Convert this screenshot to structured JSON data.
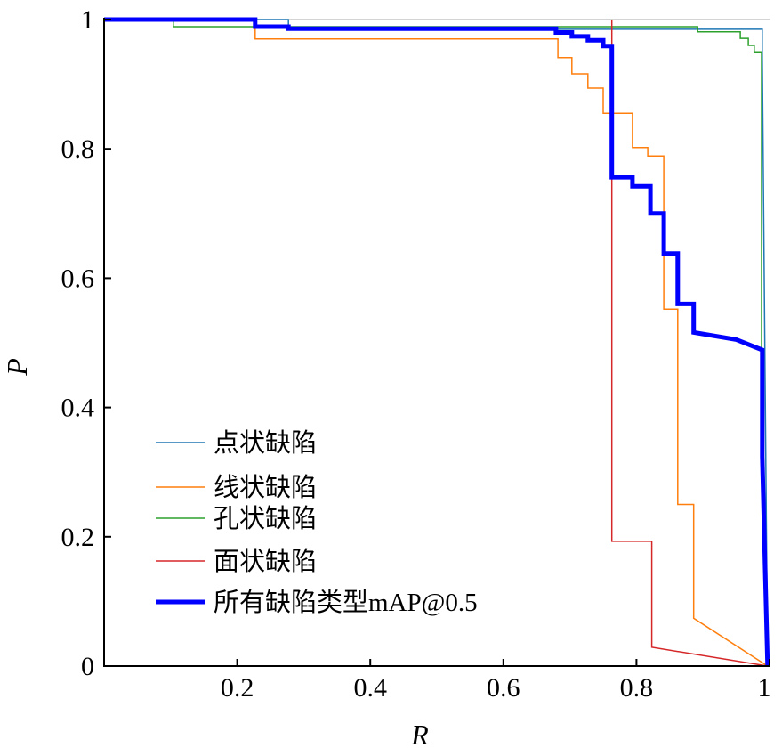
{
  "chart_data": {
    "type": "line",
    "title": "",
    "xlabel": "R",
    "ylabel": "P",
    "xlim": [
      0,
      1
    ],
    "ylim": [
      0,
      1
    ],
    "grid": false,
    "legend_position": "bottom-left",
    "xticks": [
      0.2,
      0.4,
      0.6,
      0.8,
      1
    ],
    "xtick_labels": [
      "0.2",
      "0.4",
      "0.6",
      "0.8",
      "1"
    ],
    "yticks": [
      0,
      0.2,
      0.4,
      0.6,
      0.8,
      1
    ],
    "ytick_labels": [
      "0",
      "0.2",
      "0.4",
      "0.6",
      "0.8",
      "1"
    ],
    "series": [
      {
        "name": "点状缺陷",
        "color": "#1f77b4",
        "width": 1.5,
        "points": [
          [
            0,
            1
          ],
          [
            0.277,
            1
          ],
          [
            0.277,
            0.985
          ],
          [
            0.989,
            0.985
          ],
          [
            0.989,
            0.95
          ],
          [
            0.997,
            0
          ]
        ]
      },
      {
        "name": "线状缺陷",
        "color": "#ff7f0e",
        "width": 1.5,
        "points": [
          [
            0,
            1
          ],
          [
            0.227,
            1
          ],
          [
            0.227,
            0.97
          ],
          [
            0.682,
            0.97
          ],
          [
            0.682,
            0.941
          ],
          [
            0.703,
            0.941
          ],
          [
            0.703,
            0.916
          ],
          [
            0.727,
            0.916
          ],
          [
            0.727,
            0.894
          ],
          [
            0.75,
            0.894
          ],
          [
            0.75,
            0.855
          ],
          [
            0.794,
            0.855
          ],
          [
            0.794,
            0.802
          ],
          [
            0.817,
            0.802
          ],
          [
            0.817,
            0.789
          ],
          [
            0.841,
            0.789
          ],
          [
            0.841,
            0.552
          ],
          [
            0.862,
            0.552
          ],
          [
            0.862,
            0.25
          ],
          [
            0.886,
            0.25
          ],
          [
            0.886,
            0.074
          ],
          [
            0.997,
            0
          ]
        ]
      },
      {
        "name": "孔状缺陷",
        "color": "#2ca02c",
        "width": 1.5,
        "points": [
          [
            0,
            1
          ],
          [
            0.104,
            1
          ],
          [
            0.104,
            0.989
          ],
          [
            0.892,
            0.989
          ],
          [
            0.892,
            0.981
          ],
          [
            0.956,
            0.981
          ],
          [
            0.956,
            0.971
          ],
          [
            0.968,
            0.971
          ],
          [
            0.968,
            0.96
          ],
          [
            0.977,
            0.96
          ],
          [
            0.977,
            0.95
          ],
          [
            0.988,
            0.95
          ],
          [
            0.988,
            0.49
          ],
          [
            0.997,
            0
          ]
        ]
      },
      {
        "name": "面状缺陷",
        "color": "#d62728",
        "width": 1.5,
        "points": [
          [
            0.763,
            1
          ],
          [
            0.763,
            0.193
          ],
          [
            0.823,
            0.193
          ],
          [
            0.823,
            0.029
          ],
          [
            0.997,
            0
          ]
        ]
      },
      {
        "name": "所有缺陷类型mAP@0.5",
        "color": "#0000ff",
        "width": 5,
        "points": [
          [
            0,
            1
          ],
          [
            0.227,
            1
          ],
          [
            0.227,
            0.989
          ],
          [
            0.277,
            0.989
          ],
          [
            0.277,
            0.986
          ],
          [
            0.679,
            0.986
          ],
          [
            0.679,
            0.98
          ],
          [
            0.703,
            0.98
          ],
          [
            0.703,
            0.974
          ],
          [
            0.727,
            0.974
          ],
          [
            0.727,
            0.968
          ],
          [
            0.75,
            0.968
          ],
          [
            0.75,
            0.959
          ],
          [
            0.763,
            0.959
          ],
          [
            0.763,
            0.756
          ],
          [
            0.794,
            0.756
          ],
          [
            0.794,
            0.742
          ],
          [
            0.821,
            0.742
          ],
          [
            0.821,
            0.7
          ],
          [
            0.841,
            0.7
          ],
          [
            0.841,
            0.638
          ],
          [
            0.862,
            0.638
          ],
          [
            0.862,
            0.56
          ],
          [
            0.886,
            0.56
          ],
          [
            0.886,
            0.516
          ],
          [
            0.95,
            0.505
          ],
          [
            0.989,
            0.489
          ],
          [
            0.989,
            0.324
          ],
          [
            0.997,
            0
          ]
        ]
      }
    ]
  }
}
